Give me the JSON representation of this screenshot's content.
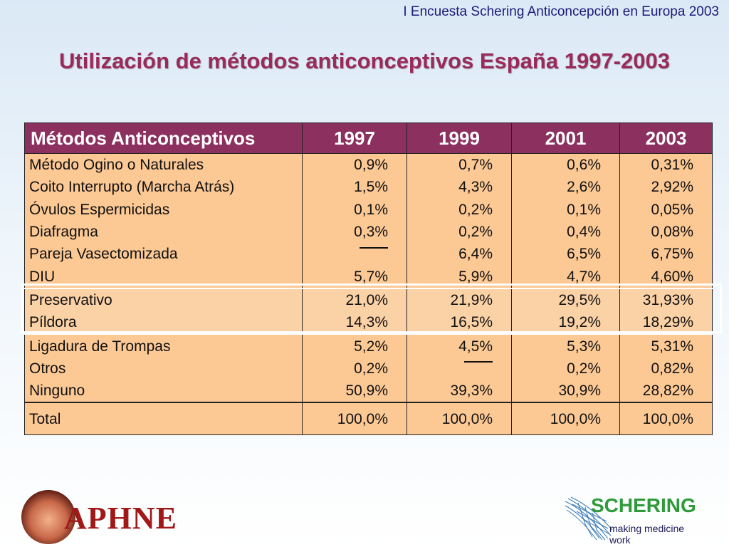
{
  "header_note": "I Encuesta Schering Anticoncepción en Europa 2003",
  "title": "Utilización de métodos anticonceptivos España 1997-2003",
  "table": {
    "headers": [
      "Métodos Anticonceptivos",
      "1997",
      "1999",
      "2001",
      "2003"
    ],
    "rows": [
      {
        "method": "Método Ogino o Naturales",
        "v1997": "0,9%",
        "v1999": "0,7%",
        "v2001": "0,6%",
        "v2003": "0,31%"
      },
      {
        "method": "Coito Interrupto (Marcha Atrás)",
        "v1997": "1,5%",
        "v1999": "4,3%",
        "v2001": "2,6%",
        "v2003": "2,92%"
      },
      {
        "method": "Óvulos Espermicidas",
        "v1997": "0,1%",
        "v1999": "0,2%",
        "v2001": "0,1%",
        "v2003": "0,05%"
      },
      {
        "method": "Diafragma",
        "v1997": "0,3%",
        "v1999": "0,2%",
        "v2001": "0,4%",
        "v2003": "0,08%"
      },
      {
        "method": "Pareja Vasectomizada",
        "v1997": "",
        "v1999": "6,4%",
        "v2001": "6,5%",
        "v2003": "6,75%"
      },
      {
        "method": "DIU",
        "v1997": "5,7%",
        "v1999": "5,9%",
        "v2001": "4,7%",
        "v2003": "4,60%"
      },
      {
        "method": "Preservativo",
        "v1997": "21,0%",
        "v1999": "21,9%",
        "v2001": "29,5%",
        "v2003": "31,93%"
      },
      {
        "method": "Píldora",
        "v1997": "14,3%",
        "v1999": "16,5%",
        "v2001": "19,2%",
        "v2003": "18,29%"
      },
      {
        "method": "Ligadura de Trompas",
        "v1997": "5,2%",
        "v1999": "4,5%",
        "v2001": "5,3%",
        "v2003": "5,31%"
      },
      {
        "method": "Otros",
        "v1997": "0,2%",
        "v1999": "",
        "v2001": "0,2%",
        "v2003": "0,82%"
      },
      {
        "method": "Ninguno",
        "v1997": "50,9%",
        "v1999": "39,3%",
        "v2001": "30,9%",
        "v2003": "28,82%"
      }
    ],
    "total": {
      "method": "Total",
      "v1997": "100,0%",
      "v1999": "100,0%",
      "v2001": "100,0%",
      "v2003": "100,0%"
    }
  },
  "logos": {
    "daphne": "APHNE",
    "schering_name": "SCHERING",
    "schering_tagline": "making medicine work"
  },
  "colors": {
    "header_bg": "#8c3060",
    "cell_bg": "#fcc995",
    "title": "#9a2a5a",
    "schering_green": "#2e9a3a"
  }
}
